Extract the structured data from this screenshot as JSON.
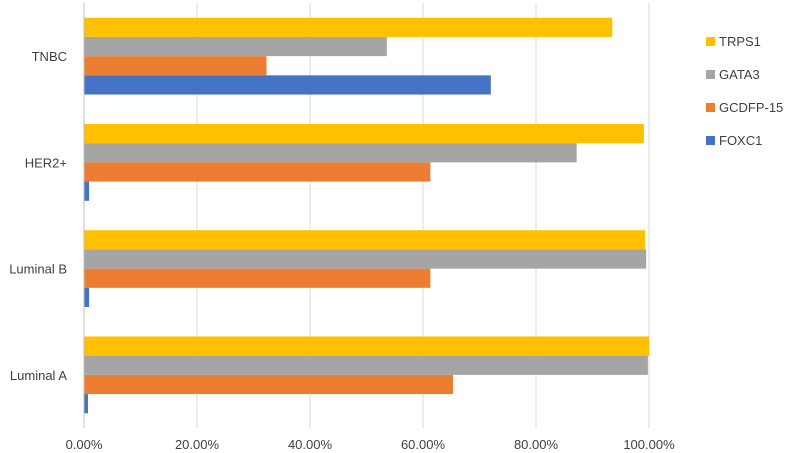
{
  "chart_data": {
    "type": "bar",
    "orientation": "horizontal",
    "categories": [
      "Luminal A",
      "Luminal B",
      "HER2+",
      "TNBC"
    ],
    "series": [
      {
        "name": "FOXC1",
        "color": "#4472C4",
        "values": [
          0.7,
          0.9,
          0.9,
          72.0
        ]
      },
      {
        "name": "GCDFP-15",
        "color": "#ED7D31",
        "values": [
          65.3,
          61.3,
          61.3,
          32.3
        ]
      },
      {
        "name": "GATA3",
        "color": "#A5A5A5",
        "values": [
          99.8,
          99.5,
          87.2,
          53.6
        ]
      },
      {
        "name": "TRPS1",
        "color": "#FFC000",
        "values": [
          100.0,
          99.3,
          99.1,
          93.5
        ]
      }
    ],
    "xlim": [
      0,
      100
    ],
    "xticks": [
      "0.00%",
      "20.00%",
      "40.00%",
      "60.00%",
      "80.00%",
      "100.00%"
    ],
    "legend_entries": [
      "TRPS1",
      "GATA3",
      "GCDFP-15",
      "FOXC1"
    ],
    "legend_position": "right",
    "grid": "vertical"
  }
}
